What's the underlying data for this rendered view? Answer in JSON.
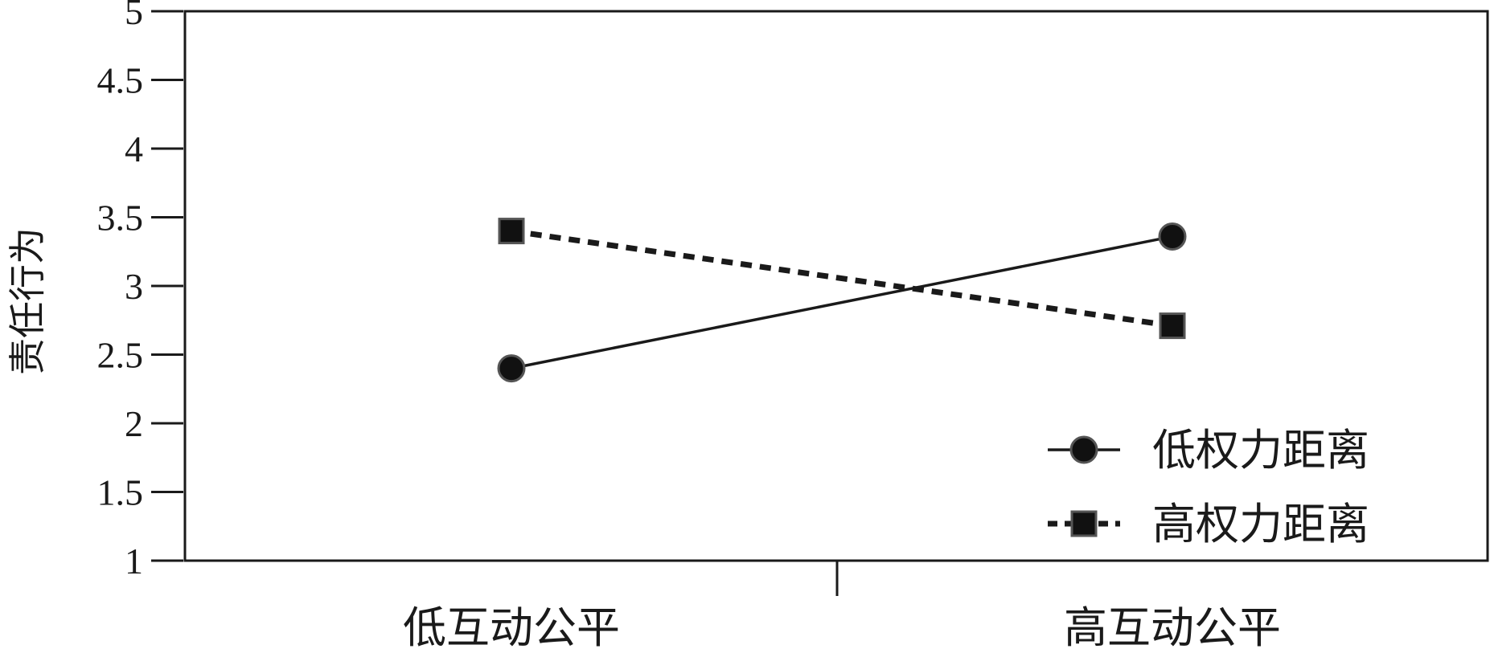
{
  "chart_data": {
    "type": "line",
    "ylabel": "责任行为",
    "xlabel": "",
    "ylim": [
      1,
      5
    ],
    "yticks": [
      "1",
      "1.5",
      "2",
      "2.5",
      "3",
      "3.5",
      "4",
      "4.5",
      "5"
    ],
    "categories": [
      "低互动公平",
      "高互动公平"
    ],
    "series": [
      {
        "name": "低权力距离",
        "values": [
          2.4,
          3.36
        ],
        "line_style": "solid",
        "marker": "circle",
        "color": "#1a1a1a"
      },
      {
        "name": "高权力距离",
        "values": [
          3.4,
          2.71
        ],
        "line_style": "dashed",
        "marker": "square",
        "color": "#1a1a1a"
      }
    ],
    "legend": "bottom-right",
    "grid": false
  }
}
